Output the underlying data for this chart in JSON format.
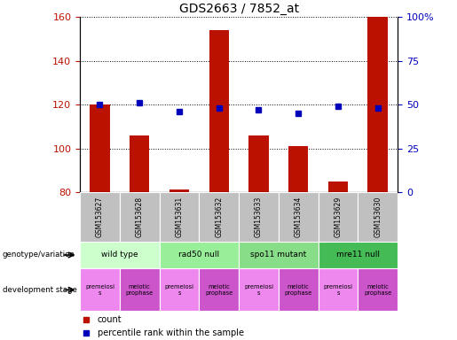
{
  "title": "GDS2663 / 7852_at",
  "samples": [
    "GSM153627",
    "GSM153628",
    "GSM153631",
    "GSM153632",
    "GSM153633",
    "GSM153634",
    "GSM153629",
    "GSM153630"
  ],
  "bar_values": [
    120,
    106,
    81,
    154,
    106,
    101,
    85,
    160
  ],
  "percentile_values": [
    50,
    51,
    46,
    48,
    47,
    45,
    49,
    48
  ],
  "ylim_left": [
    80,
    160
  ],
  "ylim_right": [
    0,
    100
  ],
  "yticks_left": [
    80,
    100,
    120,
    140,
    160
  ],
  "yticks_right": [
    0,
    25,
    50,
    75,
    100
  ],
  "yticklabels_right": [
    "0",
    "25",
    "50",
    "75",
    "100%"
  ],
  "bar_color": "#bb1100",
  "dot_color": "#0000bb",
  "genotype_groups": [
    {
      "label": "wild type",
      "start": 0,
      "end": 2,
      "color": "#ccffcc"
    },
    {
      "label": "rad50 null",
      "start": 2,
      "end": 4,
      "color": "#99ee99"
    },
    {
      "label": "spo11 mutant",
      "start": 4,
      "end": 6,
      "color": "#88dd88"
    },
    {
      "label": "mre11 null",
      "start": 6,
      "end": 8,
      "color": "#44bb55"
    }
  ],
  "dev_stage_labels": [
    "premeiosi\ns",
    "meiotic\nprophase",
    "premeiosi\ns",
    "meiotic\nprophase",
    "premeiosi\ns",
    "meiotic\nprophase",
    "premeiosi\ns",
    "meiotic\nprophase"
  ],
  "dev_color_a": "#ee88ee",
  "dev_color_b": "#cc55cc",
  "sample_bg_color": "#bbbbbb",
  "legend_items": [
    {
      "label": "count",
      "color": "#bb1100"
    },
    {
      "label": "percentile rank within the sample",
      "color": "#0000bb"
    }
  ],
  "left_labels": [
    "genotype/variation",
    "development stage"
  ]
}
